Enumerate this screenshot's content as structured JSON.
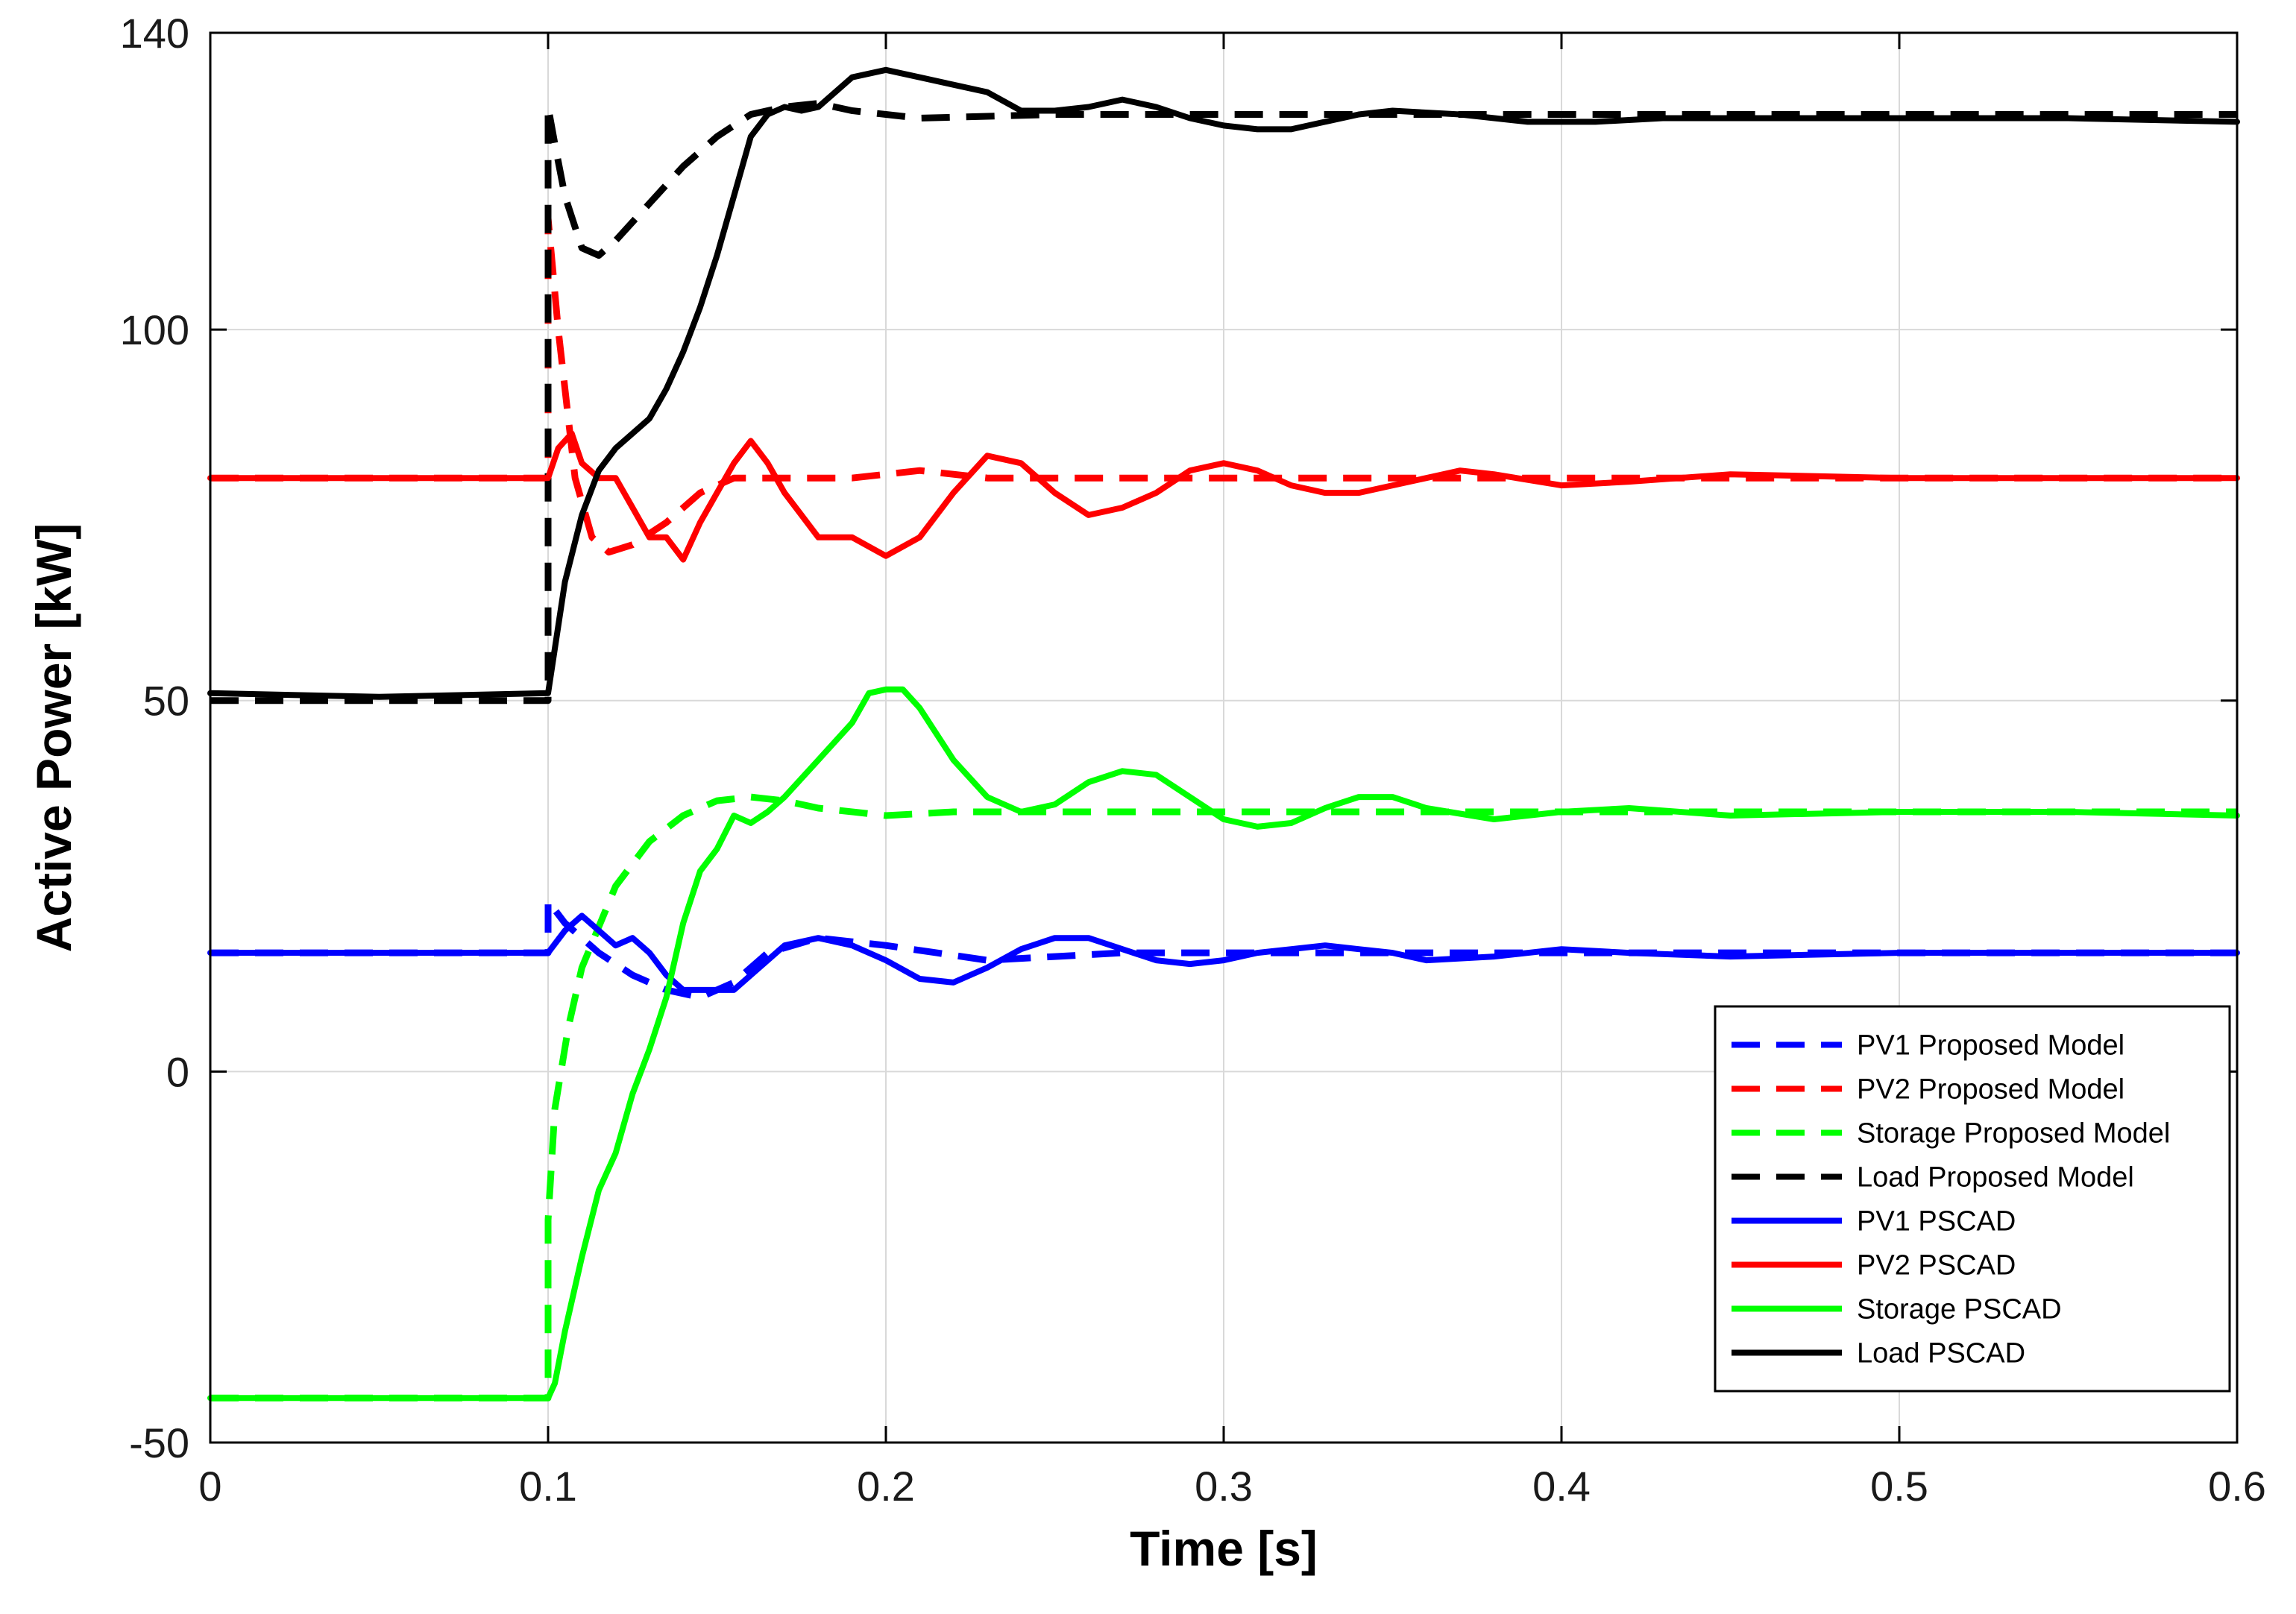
{
  "chart_data": {
    "type": "line",
    "title": "",
    "xlabel": "Time [s]",
    "ylabel": "Active Power [kW]",
    "xlim": [
      0,
      0.6
    ],
    "ylim": [
      -50,
      140
    ],
    "xticks": [
      0,
      0.1,
      0.2,
      0.3,
      0.4,
      0.5,
      0.6
    ],
    "xtick_labels": [
      "0",
      "0.1",
      "0.2",
      "0.3",
      "0.4",
      "0.5",
      "0.6"
    ],
    "yticks": [
      -50,
      0,
      50,
      100,
      140
    ],
    "ytick_labels": [
      "-50",
      "0",
      "50",
      "100",
      "140"
    ],
    "grid": true,
    "legend_position": "bottom-right",
    "series": [
      {
        "name": "PV1 Proposed Model",
        "color": "#0000ff",
        "dashed": true,
        "points": [
          [
            0,
            16
          ],
          [
            0.1,
            16
          ],
          [
            0.1,
            23
          ],
          [
            0.105,
            20
          ],
          [
            0.115,
            16
          ],
          [
            0.125,
            13
          ],
          [
            0.135,
            11
          ],
          [
            0.145,
            10
          ],
          [
            0.155,
            12
          ],
          [
            0.165,
            16
          ],
          [
            0.18,
            18
          ],
          [
            0.2,
            17
          ],
          [
            0.215,
            16
          ],
          [
            0.23,
            15
          ],
          [
            0.25,
            15.5
          ],
          [
            0.27,
            16
          ],
          [
            0.3,
            16
          ],
          [
            0.35,
            16
          ],
          [
            0.4,
            16
          ],
          [
            0.5,
            16
          ],
          [
            0.6,
            16
          ]
        ]
      },
      {
        "name": "PV2 Proposed Model",
        "color": "#ff0000",
        "dashed": true,
        "points": [
          [
            0,
            80
          ],
          [
            0.1,
            80
          ],
          [
            0.1,
            115
          ],
          [
            0.103,
            100
          ],
          [
            0.108,
            80
          ],
          [
            0.113,
            72
          ],
          [
            0.118,
            70
          ],
          [
            0.125,
            71
          ],
          [
            0.135,
            74
          ],
          [
            0.145,
            78
          ],
          [
            0.155,
            80
          ],
          [
            0.17,
            80
          ],
          [
            0.19,
            80
          ],
          [
            0.21,
            81
          ],
          [
            0.23,
            80
          ],
          [
            0.26,
            80
          ],
          [
            0.3,
            80
          ],
          [
            0.4,
            80
          ],
          [
            0.5,
            80
          ],
          [
            0.6,
            80
          ]
        ]
      },
      {
        "name": "Storage Proposed Model",
        "color": "#00ff00",
        "dashed": true,
        "points": [
          [
            0,
            -44
          ],
          [
            0.1,
            -44
          ],
          [
            0.1,
            -20
          ],
          [
            0.102,
            -5
          ],
          [
            0.106,
            6
          ],
          [
            0.11,
            14
          ],
          [
            0.12,
            25
          ],
          [
            0.13,
            31
          ],
          [
            0.14,
            34.5
          ],
          [
            0.15,
            36.5
          ],
          [
            0.16,
            37
          ],
          [
            0.17,
            36.5
          ],
          [
            0.18,
            35.5
          ],
          [
            0.2,
            34.5
          ],
          [
            0.22,
            35
          ],
          [
            0.25,
            35
          ],
          [
            0.3,
            35
          ],
          [
            0.4,
            35
          ],
          [
            0.5,
            35
          ],
          [
            0.6,
            35
          ]
        ]
      },
      {
        "name": "Load Proposed Model",
        "color": "#000000",
        "dashed": true,
        "points": [
          [
            0,
            50
          ],
          [
            0.1,
            50
          ],
          [
            0.1,
            130
          ],
          [
            0.102,
            125
          ],
          [
            0.105,
            118
          ],
          [
            0.11,
            111
          ],
          [
            0.115,
            110
          ],
          [
            0.12,
            112
          ],
          [
            0.13,
            117
          ],
          [
            0.14,
            122
          ],
          [
            0.15,
            126
          ],
          [
            0.16,
            129
          ],
          [
            0.17,
            130
          ],
          [
            0.18,
            130.5
          ],
          [
            0.19,
            129.5
          ],
          [
            0.2,
            129
          ],
          [
            0.21,
            128.5
          ],
          [
            0.25,
            129
          ],
          [
            0.3,
            129
          ],
          [
            0.4,
            129
          ],
          [
            0.5,
            129
          ],
          [
            0.6,
            129
          ]
        ]
      },
      {
        "name": "PV1 PSCAD",
        "color": "#0000ff",
        "dashed": false,
        "points": [
          [
            0,
            16
          ],
          [
            0.05,
            16
          ],
          [
            0.1,
            16
          ],
          [
            0.105,
            19
          ],
          [
            0.11,
            21
          ],
          [
            0.115,
            19
          ],
          [
            0.12,
            17
          ],
          [
            0.125,
            18
          ],
          [
            0.13,
            16
          ],
          [
            0.135,
            13
          ],
          [
            0.14,
            11
          ],
          [
            0.145,
            11
          ],
          [
            0.15,
            11
          ],
          [
            0.155,
            11
          ],
          [
            0.165,
            15
          ],
          [
            0.17,
            17
          ],
          [
            0.18,
            18
          ],
          [
            0.19,
            17
          ],
          [
            0.2,
            15
          ],
          [
            0.21,
            12.5
          ],
          [
            0.22,
            12
          ],
          [
            0.23,
            14
          ],
          [
            0.24,
            16.5
          ],
          [
            0.25,
            18
          ],
          [
            0.26,
            18
          ],
          [
            0.27,
            16.5
          ],
          [
            0.28,
            15
          ],
          [
            0.29,
            14.5
          ],
          [
            0.3,
            15
          ],
          [
            0.31,
            16
          ],
          [
            0.32,
            16.5
          ],
          [
            0.33,
            17
          ],
          [
            0.34,
            16.5
          ],
          [
            0.35,
            16
          ],
          [
            0.36,
            15
          ],
          [
            0.38,
            15.5
          ],
          [
            0.4,
            16.5
          ],
          [
            0.42,
            16
          ],
          [
            0.45,
            15.5
          ],
          [
            0.5,
            16
          ],
          [
            0.55,
            16
          ],
          [
            0.6,
            16
          ]
        ]
      },
      {
        "name": "PV2 PSCAD",
        "color": "#ff0000",
        "dashed": false,
        "points": [
          [
            0,
            80
          ],
          [
            0.05,
            80
          ],
          [
            0.1,
            80
          ],
          [
            0.103,
            84
          ],
          [
            0.107,
            86
          ],
          [
            0.11,
            82
          ],
          [
            0.115,
            80
          ],
          [
            0.12,
            80
          ],
          [
            0.125,
            76
          ],
          [
            0.13,
            72
          ],
          [
            0.135,
            72
          ],
          [
            0.14,
            69
          ],
          [
            0.145,
            74
          ],
          [
            0.15,
            78
          ],
          [
            0.155,
            82
          ],
          [
            0.16,
            85
          ],
          [
            0.165,
            82
          ],
          [
            0.17,
            78
          ],
          [
            0.175,
            75
          ],
          [
            0.18,
            72
          ],
          [
            0.19,
            72
          ],
          [
            0.2,
            69.5
          ],
          [
            0.21,
            72
          ],
          [
            0.22,
            78
          ],
          [
            0.23,
            83
          ],
          [
            0.24,
            82
          ],
          [
            0.25,
            78
          ],
          [
            0.26,
            75
          ],
          [
            0.27,
            76
          ],
          [
            0.28,
            78
          ],
          [
            0.29,
            81
          ],
          [
            0.3,
            82
          ],
          [
            0.31,
            81
          ],
          [
            0.32,
            79
          ],
          [
            0.33,
            78
          ],
          [
            0.34,
            78
          ],
          [
            0.35,
            79
          ],
          [
            0.36,
            80
          ],
          [
            0.37,
            81
          ],
          [
            0.38,
            80.5
          ],
          [
            0.4,
            79
          ],
          [
            0.42,
            79.5
          ],
          [
            0.45,
            80.5
          ],
          [
            0.5,
            80
          ],
          [
            0.55,
            80
          ],
          [
            0.6,
            80
          ]
        ]
      },
      {
        "name": "Storage PSCAD",
        "color": "#00ff00",
        "dashed": false,
        "points": [
          [
            0,
            -44
          ],
          [
            0.05,
            -44
          ],
          [
            0.1,
            -44
          ],
          [
            0.102,
            -42
          ],
          [
            0.105,
            -35
          ],
          [
            0.11,
            -25
          ],
          [
            0.115,
            -16
          ],
          [
            0.12,
            -11
          ],
          [
            0.125,
            -3
          ],
          [
            0.13,
            3
          ],
          [
            0.135,
            10
          ],
          [
            0.14,
            20
          ],
          [
            0.145,
            27
          ],
          [
            0.15,
            30
          ],
          [
            0.155,
            34.5
          ],
          [
            0.16,
            33.5
          ],
          [
            0.165,
            35
          ],
          [
            0.17,
            37
          ],
          [
            0.18,
            42
          ],
          [
            0.19,
            47
          ],
          [
            0.195,
            51
          ],
          [
            0.2,
            51.5
          ],
          [
            0.205,
            51.5
          ],
          [
            0.21,
            49
          ],
          [
            0.22,
            42
          ],
          [
            0.23,
            37
          ],
          [
            0.24,
            35
          ],
          [
            0.25,
            36
          ],
          [
            0.26,
            39
          ],
          [
            0.27,
            40.5
          ],
          [
            0.28,
            40
          ],
          [
            0.29,
            37
          ],
          [
            0.3,
            34
          ],
          [
            0.31,
            33
          ],
          [
            0.32,
            33.5
          ],
          [
            0.33,
            35.5
          ],
          [
            0.34,
            37
          ],
          [
            0.35,
            37
          ],
          [
            0.36,
            35.5
          ],
          [
            0.38,
            34
          ],
          [
            0.4,
            35
          ],
          [
            0.42,
            35.5
          ],
          [
            0.45,
            34.5
          ],
          [
            0.5,
            35
          ],
          [
            0.55,
            35
          ],
          [
            0.6,
            34.5
          ]
        ]
      },
      {
        "name": "Load PSCAD",
        "color": "#000000",
        "dashed": false,
        "points": [
          [
            0,
            51
          ],
          [
            0.05,
            50.5
          ],
          [
            0.1,
            51
          ],
          [
            0.105,
            66
          ],
          [
            0.11,
            75
          ],
          [
            0.115,
            81
          ],
          [
            0.12,
            84
          ],
          [
            0.125,
            86
          ],
          [
            0.13,
            88
          ],
          [
            0.135,
            92
          ],
          [
            0.14,
            97
          ],
          [
            0.145,
            103
          ],
          [
            0.15,
            110
          ],
          [
            0.155,
            118
          ],
          [
            0.16,
            126
          ],
          [
            0.165,
            129
          ],
          [
            0.17,
            130
          ],
          [
            0.175,
            129.5
          ],
          [
            0.18,
            130
          ],
          [
            0.19,
            134
          ],
          [
            0.2,
            135
          ],
          [
            0.21,
            134
          ],
          [
            0.22,
            133
          ],
          [
            0.23,
            132
          ],
          [
            0.24,
            129.5
          ],
          [
            0.25,
            129.5
          ],
          [
            0.26,
            130
          ],
          [
            0.27,
            131
          ],
          [
            0.28,
            130
          ],
          [
            0.29,
            128.5
          ],
          [
            0.3,
            127.5
          ],
          [
            0.31,
            127
          ],
          [
            0.32,
            127
          ],
          [
            0.33,
            128
          ],
          [
            0.34,
            129
          ],
          [
            0.35,
            129.5
          ],
          [
            0.37,
            129
          ],
          [
            0.39,
            128
          ],
          [
            0.41,
            128
          ],
          [
            0.43,
            128.5
          ],
          [
            0.45,
            128.5
          ],
          [
            0.5,
            128.5
          ],
          [
            0.55,
            128.5
          ],
          [
            0.6,
            128
          ]
        ]
      }
    ]
  }
}
